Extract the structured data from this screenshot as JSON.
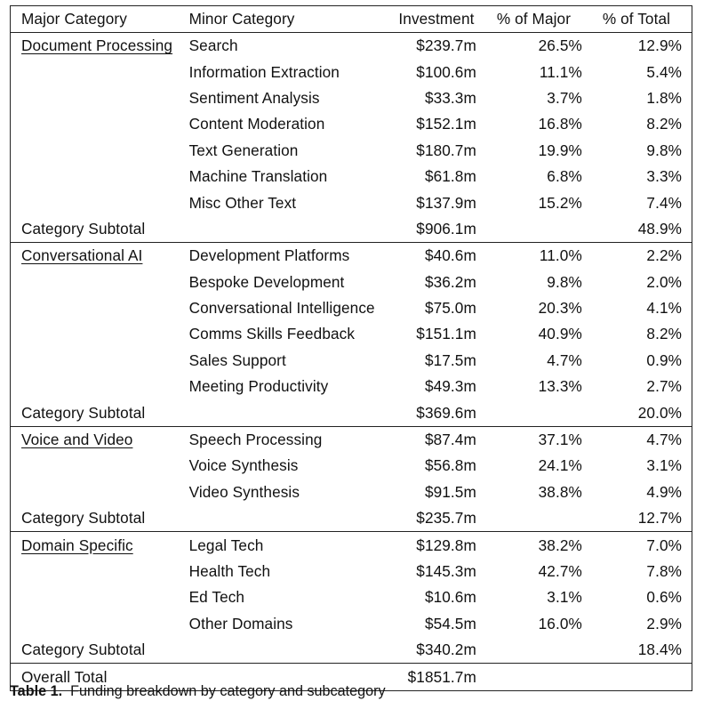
{
  "headers": {
    "major": "Major Category",
    "minor": "Minor Category",
    "investment": "Investment",
    "pct_major": "% of Major",
    "pct_total": "% of Total"
  },
  "groups": [
    {
      "name": "Document Processing",
      "rows": [
        {
          "minor": "Search",
          "investment": "$239.7m",
          "pct_major": "26.5%",
          "pct_total": "12.9%"
        },
        {
          "minor": "Information Extraction",
          "investment": "$100.6m",
          "pct_major": "11.1%",
          "pct_total": "5.4%"
        },
        {
          "minor": "Sentiment Analysis",
          "investment": "$33.3m",
          "pct_major": "3.7%",
          "pct_total": "1.8%"
        },
        {
          "minor": "Content Moderation",
          "investment": "$152.1m",
          "pct_major": "16.8%",
          "pct_total": "8.2%"
        },
        {
          "minor": "Text Generation",
          "investment": "$180.7m",
          "pct_major": "19.9%",
          "pct_total": "9.8%"
        },
        {
          "minor": "Machine Translation",
          "investment": "$61.8m",
          "pct_major": "6.8%",
          "pct_total": "3.3%"
        },
        {
          "minor": "Misc Other Text",
          "investment": "$137.9m",
          "pct_major": "15.2%",
          "pct_total": "7.4%"
        }
      ],
      "subtotal": {
        "label": "Category Subtotal",
        "investment": "$906.1m",
        "pct_total": "48.9%"
      }
    },
    {
      "name": "Conversational AI",
      "rows": [
        {
          "minor": "Development Platforms",
          "investment": "$40.6m",
          "pct_major": "11.0%",
          "pct_total": "2.2%"
        },
        {
          "minor": "Bespoke Development",
          "investment": "$36.2m",
          "pct_major": "9.8%",
          "pct_total": "2.0%"
        },
        {
          "minor": "Conversational Intelligence",
          "investment": "$75.0m",
          "pct_major": "20.3%",
          "pct_total": "4.1%"
        },
        {
          "minor": "Comms Skills Feedback",
          "investment": "$151.1m",
          "pct_major": "40.9%",
          "pct_total": "8.2%"
        },
        {
          "minor": "Sales Support",
          "investment": "$17.5m",
          "pct_major": "4.7%",
          "pct_total": "0.9%"
        },
        {
          "minor": "Meeting Productivity",
          "investment": "$49.3m",
          "pct_major": "13.3%",
          "pct_total": "2.7%"
        }
      ],
      "subtotal": {
        "label": "Category Subtotal",
        "investment": "$369.6m",
        "pct_total": "20.0%"
      }
    },
    {
      "name": "Voice and Video",
      "rows": [
        {
          "minor": "Speech Processing",
          "investment": "$87.4m",
          "pct_major": "37.1%",
          "pct_total": "4.7%"
        },
        {
          "minor": "Voice Synthesis",
          "investment": "$56.8m",
          "pct_major": "24.1%",
          "pct_total": "3.1%"
        },
        {
          "minor": "Video Synthesis",
          "investment": "$91.5m",
          "pct_major": "38.8%",
          "pct_total": "4.9%"
        }
      ],
      "subtotal": {
        "label": "Category Subtotal",
        "investment": "$235.7m",
        "pct_total": "12.7%"
      }
    },
    {
      "name": "Domain Specific",
      "rows": [
        {
          "minor": "Legal Tech",
          "investment": "$129.8m",
          "pct_major": "38.2%",
          "pct_total": "7.0%"
        },
        {
          "minor": "Health Tech",
          "investment": "$145.3m",
          "pct_major": "42.7%",
          "pct_total": "7.8%"
        },
        {
          "minor": "Ed Tech",
          "investment": "$10.6m",
          "pct_major": "3.1%",
          "pct_total": "0.6%"
        },
        {
          "minor": "Other Domains",
          "investment": "$54.5m",
          "pct_major": "16.0%",
          "pct_total": "2.9%"
        }
      ],
      "subtotal": {
        "label": "Category Subtotal",
        "investment": "$340.2m",
        "pct_total": "18.4%"
      }
    }
  ],
  "overall": {
    "label": "Overall Total",
    "investment": "$1851.7m"
  },
  "caption": {
    "label": "Table 1.",
    "text": "Funding breakdown by category and subcategory"
  }
}
